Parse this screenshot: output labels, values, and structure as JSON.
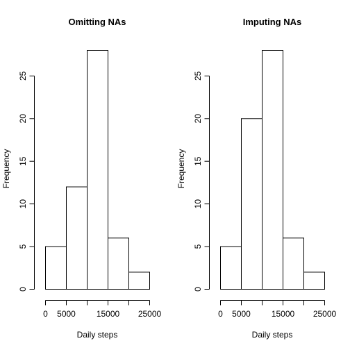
{
  "chart_data": [
    {
      "type": "bar",
      "title": "Omitting NAs",
      "xlabel": "Daily steps",
      "ylabel": "Frequency",
      "bins": [
        {
          "from": 0,
          "to": 5000,
          "count": 5
        },
        {
          "from": 5000,
          "to": 10000,
          "count": 12
        },
        {
          "from": 10000,
          "to": 15000,
          "count": 28
        },
        {
          "from": 15000,
          "to": 20000,
          "count": 6
        },
        {
          "from": 20000,
          "to": 25000,
          "count": 2
        }
      ],
      "xlim": [
        0,
        25000
      ],
      "ylim": [
        0,
        28
      ],
      "x_ticks": [
        0,
        5000,
        10000,
        15000,
        20000,
        25000
      ],
      "x_tick_labels": [
        "0",
        "5000",
        "",
        "15000",
        "",
        "25000"
      ],
      "y_ticks": [
        0,
        5,
        10,
        15,
        20,
        25
      ],
      "y_tick_labels": [
        "0",
        "5",
        "10",
        "15",
        "20",
        "25"
      ],
      "grid": false
    },
    {
      "type": "bar",
      "title": "Imputing NAs",
      "xlabel": "Daily steps",
      "ylabel": "Frequency",
      "bins": [
        {
          "from": 0,
          "to": 5000,
          "count": 5
        },
        {
          "from": 5000,
          "to": 10000,
          "count": 20
        },
        {
          "from": 10000,
          "to": 15000,
          "count": 28
        },
        {
          "from": 15000,
          "to": 20000,
          "count": 6
        },
        {
          "from": 20000,
          "to": 25000,
          "count": 2
        }
      ],
      "xlim": [
        0,
        25000
      ],
      "ylim": [
        0,
        28
      ],
      "x_ticks": [
        0,
        5000,
        10000,
        15000,
        20000,
        25000
      ],
      "x_tick_labels": [
        "0",
        "5000",
        "",
        "15000",
        "",
        "25000"
      ],
      "y_ticks": [
        0,
        5,
        10,
        15,
        20,
        25
      ],
      "y_tick_labels": [
        "0",
        "5",
        "10",
        "15",
        "20",
        "25"
      ],
      "grid": false
    }
  ]
}
